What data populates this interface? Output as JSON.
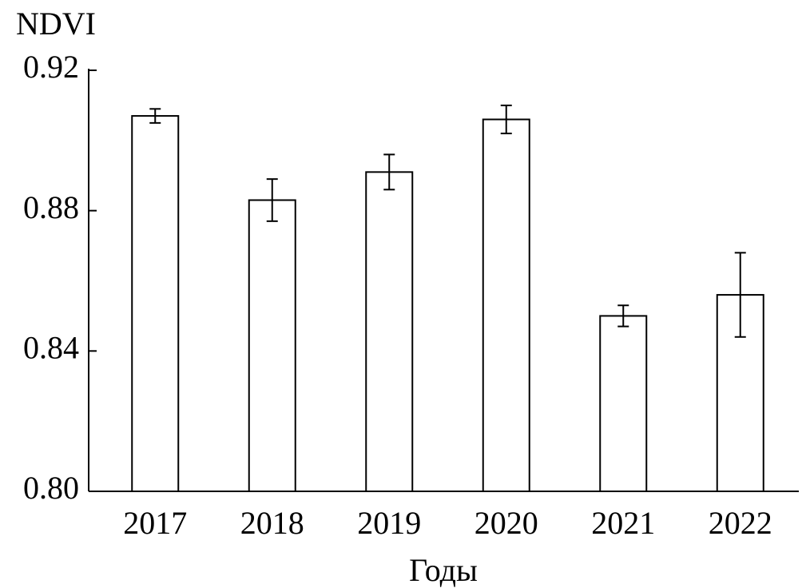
{
  "chart_data": {
    "type": "bar",
    "y_label": "NDVI",
    "x_label": "Годы",
    "categories": [
      "2017",
      "2018",
      "2019",
      "2020",
      "2021",
      "2022"
    ],
    "values": [
      0.907,
      0.883,
      0.891,
      0.906,
      0.85,
      0.856
    ],
    "errors": [
      0.002,
      0.006,
      0.005,
      0.004,
      0.003,
      0.012
    ],
    "color": "#ffffff",
    "ylim": [
      0.8,
      0.92
    ],
    "yticks": [
      {
        "value": 0.8,
        "label": "0.80"
      },
      0.84,
      0.88,
      0.92
    ],
    "grid": false
  }
}
